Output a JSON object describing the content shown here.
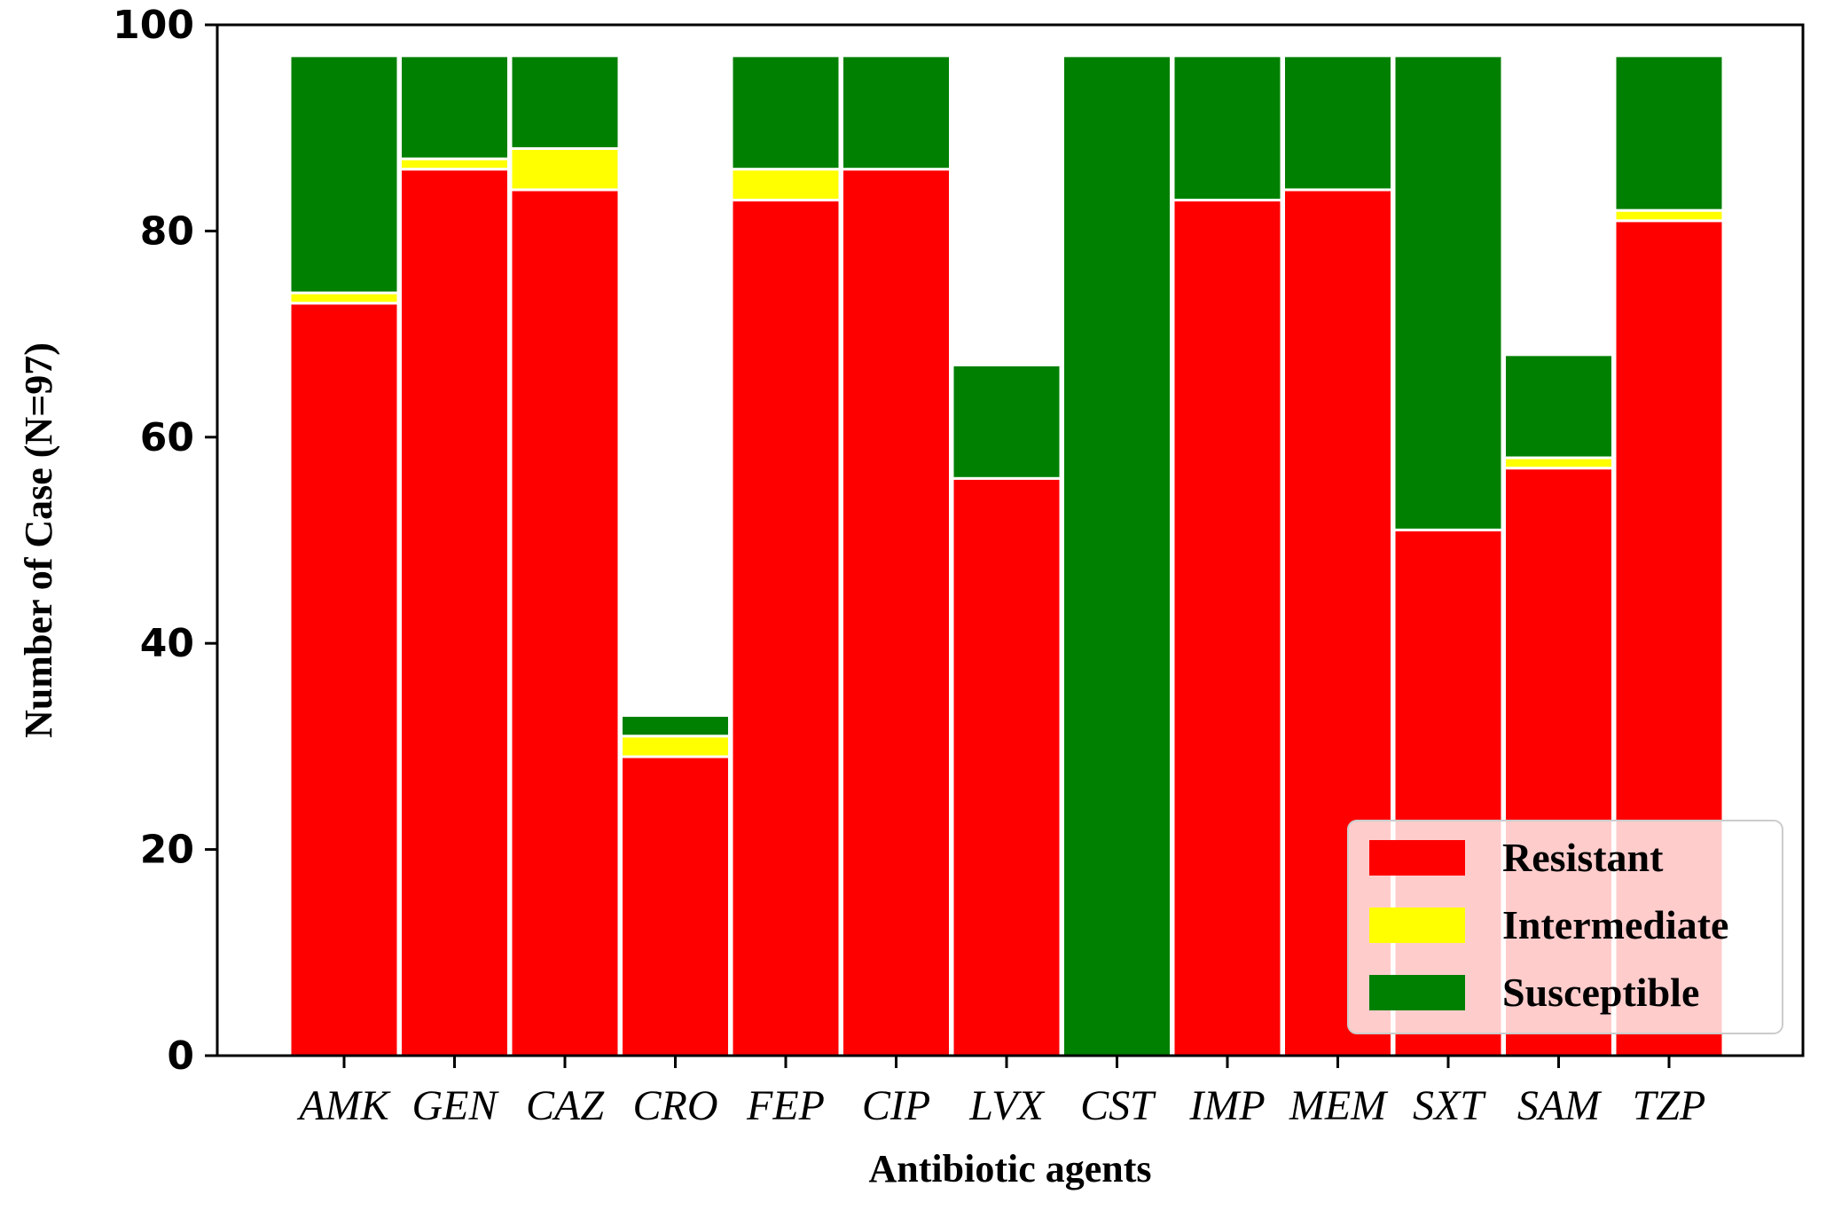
{
  "chart_data": {
    "type": "bar",
    "stacked": true,
    "categories": [
      "AMK",
      "GEN",
      "CAZ",
      "CRO",
      "FEP",
      "CIP",
      "LVX",
      "CST",
      "IMP",
      "MEM",
      "SXT",
      "SAM",
      "TZP"
    ],
    "series": [
      {
        "name": "Resistant",
        "color": "#ff0000",
        "values": [
          73,
          86,
          84,
          29,
          83,
          86,
          56,
          0,
          83,
          84,
          51,
          57,
          81
        ]
      },
      {
        "name": "Intermediate",
        "color": "#ffff00",
        "values": [
          1,
          1,
          4,
          2,
          3,
          0,
          0,
          0,
          0,
          0,
          0,
          1,
          1
        ]
      },
      {
        "name": "Susceptible",
        "color": "#008000",
        "values": [
          23,
          10,
          9,
          2,
          11,
          11,
          11,
          97,
          14,
          13,
          46,
          10,
          15
        ]
      }
    ],
    "xlabel": "Antibiotic agents",
    "ylabel": "Number of Case (N=97)",
    "ylim": [
      0,
      100
    ],
    "yticks": [
      0,
      20,
      40,
      60,
      80,
      100
    ],
    "legend_position": "lower-right"
  }
}
